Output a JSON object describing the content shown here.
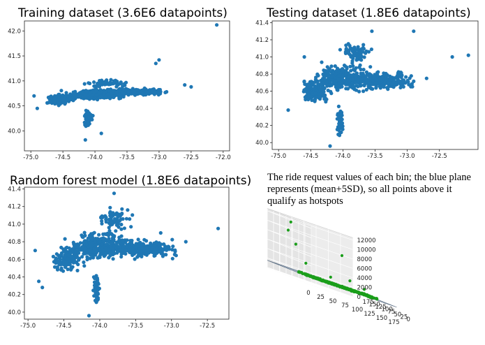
{
  "colors": {
    "point": "#1f77b4",
    "green": "#1a9e1a",
    "plane": "#8a9eb4"
  },
  "caption": "The ride request values of each bin; the blue plane represents (mean+5SD), so all points above it qualify as hotspots",
  "chart_data": [
    {
      "type": "scatter",
      "title": "Training dataset (3.6E6 datapoints)",
      "xlabel": "",
      "ylabel": "",
      "xlim": [
        -75.1,
        -71.9
      ],
      "ylim": [
        39.6,
        42.2
      ],
      "xticks": [
        "-75.0",
        "-74.5",
        "-74.0",
        "-73.5",
        "-73.0",
        "-72.5",
        "-72.0"
      ],
      "yticks": [
        "40.0",
        "40.5",
        "41.0",
        "41.5",
        "42.0"
      ],
      "grid": false
    },
    {
      "type": "scatter",
      "title": "Testing dataset (1.8E6 datapoints)",
      "xlabel": "",
      "ylabel": "",
      "xlim": [
        -75.1,
        -71.9
      ],
      "ylim": [
        39.92,
        41.42
      ],
      "xticks": [
        "-75.0",
        "-74.5",
        "-74.0",
        "-73.5",
        "-73.0",
        "-72.5"
      ],
      "yticks": [
        "40.0",
        "40.2",
        "40.4",
        "40.6",
        "40.8",
        "41.0",
        "41.2",
        "41.4"
      ],
      "grid": false
    },
    {
      "type": "scatter",
      "title": "Random forest model (1.8E6 datapoints)",
      "xlabel": "",
      "ylabel": "",
      "xlim": [
        -75.05,
        -72.2
      ],
      "ylim": [
        39.92,
        41.42
      ],
      "xticks": [
        "-75.0",
        "-74.5",
        "-74.0",
        "-73.5",
        "-73.0",
        "-72.5"
      ],
      "yticks": [
        "40.0",
        "40.2",
        "40.4",
        "40.6",
        "40.8",
        "41.0",
        "41.2",
        "41.4"
      ],
      "grid": false
    },
    {
      "type": "scatter",
      "title": "",
      "xlabel": "",
      "ylabel": "",
      "zlabel": "",
      "xticks": [
        "0",
        "25",
        "50",
        "75",
        "100",
        "125",
        "150",
        "175"
      ],
      "yticks": [
        "0",
        "25",
        "50",
        "75",
        "100",
        "125",
        "150",
        "175"
      ],
      "zticks": [
        "0",
        "2000",
        "4000",
        "6000",
        "8000",
        "10000",
        "12000"
      ],
      "plane_value": 1500,
      "grid": true
    }
  ]
}
